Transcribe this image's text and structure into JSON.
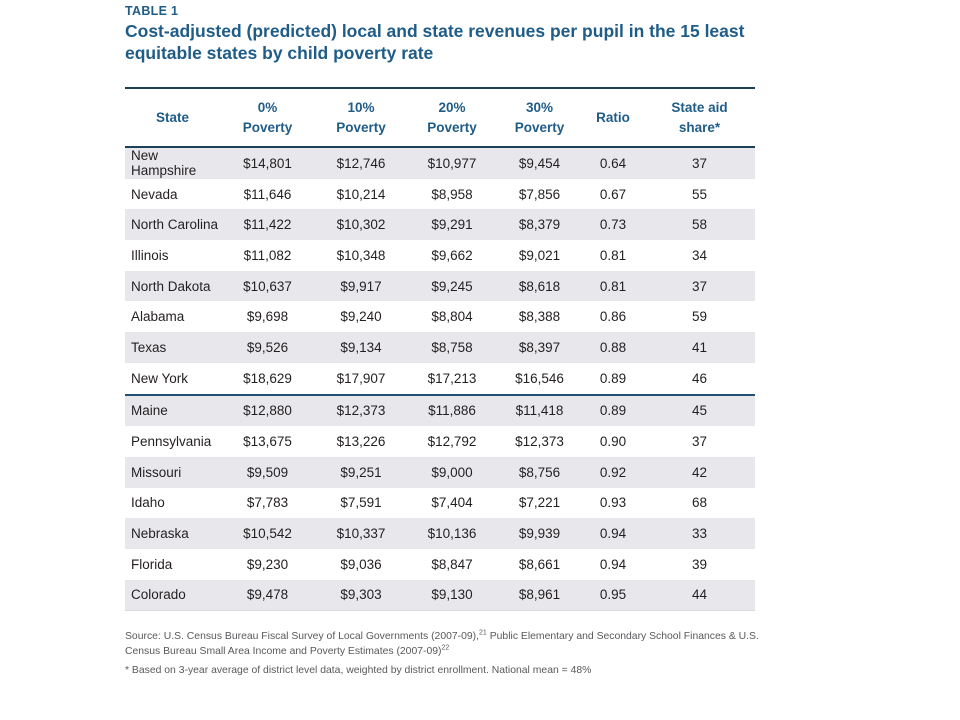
{
  "accent_blue": "#1f5c87",
  "header": {
    "table_label": "TABLE 1",
    "title": "Cost-adjusted (predicted) local and state revenues per pupil in the 15 least equitable states by child poverty rate"
  },
  "table": {
    "columns": [
      {
        "id": "state",
        "label": "State"
      },
      {
        "id": "poverty-0",
        "label": "0%\nPoverty"
      },
      {
        "id": "poverty-10",
        "label": "10%\nPoverty"
      },
      {
        "id": "poverty-20",
        "label": "20%\nPoverty"
      },
      {
        "id": "poverty-30",
        "label": "30%\nPoverty"
      },
      {
        "id": "ratio",
        "label": "Ratio"
      },
      {
        "id": "state-aid-share",
        "label": "State aid\nshare*"
      }
    ],
    "rows": [
      {
        "divider_above": false,
        "cells": [
          "New Hampshire",
          "$14,801",
          "$12,746",
          "$10,977",
          "$9,454",
          "0.64",
          "37"
        ]
      },
      {
        "divider_above": false,
        "cells": [
          "Nevada",
          "$11,646",
          "$10,214",
          "$8,958",
          "$7,856",
          "0.67",
          "55"
        ]
      },
      {
        "divider_above": false,
        "cells": [
          "North Carolina",
          "$11,422",
          "$10,302",
          "$9,291",
          "$8,379",
          "0.73",
          "58"
        ]
      },
      {
        "divider_above": false,
        "cells": [
          "Illinois",
          "$11,082",
          "$10,348",
          "$9,662",
          "$9,021",
          "0.81",
          "34"
        ]
      },
      {
        "divider_above": false,
        "cells": [
          "North Dakota",
          "$10,637",
          "$9,917",
          "$9,245",
          "$8,618",
          "0.81",
          "37"
        ]
      },
      {
        "divider_above": false,
        "cells": [
          "Alabama",
          "$9,698",
          "$9,240",
          "$8,804",
          "$8,388",
          "0.86",
          "59"
        ]
      },
      {
        "divider_above": false,
        "cells": [
          "Texas",
          "$9,526",
          "$9,134",
          "$8,758",
          "$8,397",
          "0.88",
          "41"
        ]
      },
      {
        "divider_above": false,
        "cells": [
          "New York",
          "$18,629",
          "$17,907",
          "$17,213",
          "$16,546",
          "0.89",
          "46"
        ]
      },
      {
        "divider_above": true,
        "cells": [
          "Maine",
          "$12,880",
          "$12,373",
          "$11,886",
          "$11,418",
          "0.89",
          "45"
        ]
      },
      {
        "divider_above": false,
        "cells": [
          "Pennsylvania",
          "$13,675",
          "$13,226",
          "$12,792",
          "$12,373",
          "0.90",
          "37"
        ]
      },
      {
        "divider_above": false,
        "cells": [
          "Missouri",
          "$9,509",
          "$9,251",
          "$9,000",
          "$8,756",
          "0.92",
          "42"
        ]
      },
      {
        "divider_above": false,
        "cells": [
          "Idaho",
          "$7,783",
          "$7,591",
          "$7,404",
          "$7,221",
          "0.93",
          "68"
        ]
      },
      {
        "divider_above": false,
        "cells": [
          "Nebraska",
          "$10,542",
          "$10,337",
          "$10,136",
          "$9,939",
          "0.94",
          "33"
        ]
      },
      {
        "divider_above": false,
        "cells": [
          "Florida",
          "$9,230",
          "$9,036",
          "$8,847",
          "$8,661",
          "0.94",
          "39"
        ]
      },
      {
        "divider_above": false,
        "cells": [
          "Colorado",
          "$9,478",
          "$9,303",
          "$9,130",
          "$8,961",
          "0.95",
          "44"
        ]
      }
    ]
  },
  "footer": {
    "source_part1": "Source: U.S. Census Bureau Fiscal Survey of Local Governments (2007-09),",
    "source_sup1": "21",
    "source_part2": " Public Elementary and Secondary School Finances & U.S. Census Bureau Small Area Income and Poverty Estimates (2007-09)",
    "source_sup2": "22",
    "note": "* Based on 3-year average of district level data, weighted by district enrollment. National mean = 48%"
  }
}
